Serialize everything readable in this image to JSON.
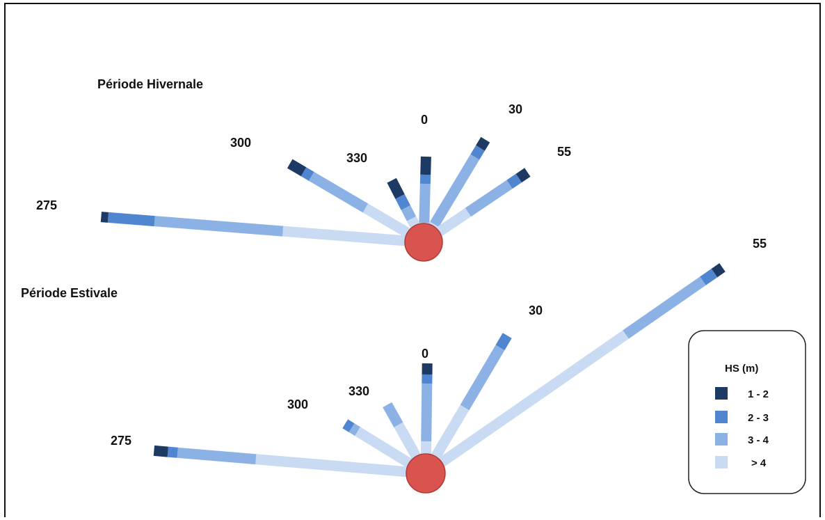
{
  "colors": {
    "class_1_2": "#1c3a63",
    "class_2_3": "#4f86cf",
    "class_3_4": "#8cb2e5",
    "class_gt4": "#c8dbf3",
    "center_fill": "#d9534f",
    "center_stroke": "#b03a36"
  },
  "periods": [
    {
      "title": "Période Hivernale",
      "rays": [
        {
          "label": "275",
          "segments": [
            {
              "class": "class_gt4",
              "value": 203
            },
            {
              "class": "class_3_4",
              "value": 185
            },
            {
              "class": "class_2_3",
              "value": 67
            },
            {
              "class": "class_1_2",
              "value": 10
            }
          ]
        },
        {
          "label": "300",
          "segments": [
            {
              "class": "class_gt4",
              "value": 97
            },
            {
              "class": "class_3_4",
              "value": 90
            },
            {
              "class": "class_2_3",
              "value": 13
            },
            {
              "class": "class_1_2",
              "value": 23
            }
          ]
        },
        {
          "label": "330",
          "segments": [
            {
              "class": "class_gt4",
              "value": 38
            },
            {
              "class": "class_3_4",
              "value": 18
            },
            {
              "class": "class_2_3",
              "value": 18
            },
            {
              "class": "class_1_2",
              "value": 26
            }
          ]
        },
        {
          "label": "0",
          "segments": [
            {
              "class": "class_gt4",
              "value": 28
            },
            {
              "class": "class_3_4",
              "value": 56
            },
            {
              "class": "class_2_3",
              "value": 13
            },
            {
              "class": "class_1_2",
              "value": 26
            }
          ]
        },
        {
          "label": "30",
          "segments": [
            {
              "class": "class_gt4",
              "value": 30
            },
            {
              "class": "class_3_4",
              "value": 113
            },
            {
              "class": "class_2_3",
              "value": 15
            },
            {
              "class": "class_1_2",
              "value": 14
            }
          ]
        },
        {
          "label": "55",
          "segments": [
            {
              "class": "class_gt4",
              "value": 77
            },
            {
              "class": "class_3_4",
              "value": 72
            },
            {
              "class": "class_2_3",
              "value": 16
            },
            {
              "class": "class_1_2",
              "value": 15
            }
          ]
        }
      ]
    },
    {
      "title": "Période Estivale",
      "rays": [
        {
          "label": "275",
          "segments": [
            {
              "class": "class_gt4",
              "value": 245
            },
            {
              "class": "class_3_4",
              "value": 113
            },
            {
              "class": "class_2_3",
              "value": 14
            },
            {
              "class": "class_1_2",
              "value": 20
            }
          ]
        },
        {
          "label": "300",
          "segments": [
            {
              "class": "class_gt4",
              "value": 115
            },
            {
              "class": "class_3_4",
              "value": 10
            },
            {
              "class": "class_2_3",
              "value": 11
            }
          ]
        },
        {
          "label": "330",
          "segments": [
            {
              "class": "class_gt4",
              "value": 80
            },
            {
              "class": "class_3_4",
              "value": 33
            }
          ]
        },
        {
          "label": "0",
          "segments": [
            {
              "class": "class_gt4",
              "value": 46
            },
            {
              "class": "class_3_4",
              "value": 83
            },
            {
              "class": "class_2_3",
              "value": 13
            },
            {
              "class": "class_1_2",
              "value": 16
            }
          ]
        },
        {
          "label": "30",
          "segments": [
            {
              "class": "class_gt4",
              "value": 110
            },
            {
              "class": "class_3_4",
              "value": 100
            },
            {
              "class": "class_2_3",
              "value": 20
            }
          ]
        },
        {
          "label": "55",
          "segments": [
            {
              "class": "class_gt4",
              "value": 350
            },
            {
              "class": "class_3_4",
              "value": 135
            },
            {
              "class": "class_2_3",
              "value": 20
            },
            {
              "class": "class_1_2",
              "value": 14
            }
          ]
        }
      ]
    }
  ],
  "legend": {
    "title": "HS (m)",
    "items": [
      {
        "class": "class_1_2",
        "label": "1 - 2"
      },
      {
        "class": "class_2_3",
        "label": "2 - 3"
      },
      {
        "class": "class_3_4",
        "label": "3 - 4"
      },
      {
        "class": "class_gt4",
        "label": "> 4"
      }
    ]
  }
}
